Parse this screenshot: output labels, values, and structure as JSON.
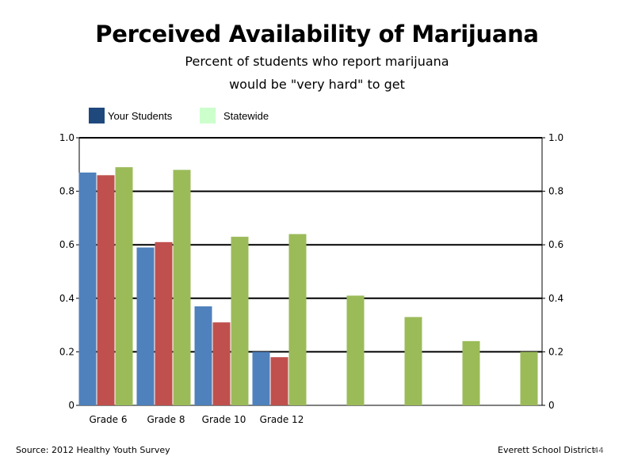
{
  "chart_data": {
    "type": "bar",
    "title": "Perceived Availability of Marijuana",
    "subtitle_lines": [
      "Percent of students who report marijuana",
      "would be \"very hard\" to get"
    ],
    "categories": [
      "Grade 6",
      "Grade 8",
      "Grade 10",
      "Grade 12",
      "",
      "",
      "",
      ""
    ],
    "series": [
      {
        "name": "Your Students",
        "color": "#4f81bd",
        "values": [
          0.87,
          0.59,
          0.37,
          0.2,
          null,
          null,
          null,
          null
        ]
      },
      {
        "name": "",
        "color": "#c0504d",
        "values": [
          0.86,
          0.61,
          0.31,
          0.18,
          null,
          null,
          null,
          null
        ]
      },
      {
        "name": "Statewide",
        "color": "#9bbb59",
        "values": [
          0.89,
          0.88,
          0.63,
          0.64,
          0.41,
          0.33,
          0.24,
          0.2
        ]
      }
    ],
    "legend": [
      {
        "label": "Your Students",
        "color": "#1f497d"
      },
      {
        "label": "Statewide",
        "color": "#ccffcc"
      }
    ],
    "ylim": [
      0,
      1.0
    ],
    "yticks": [
      0,
      0.2,
      0.4,
      0.6,
      0.8,
      1.0
    ],
    "ytick_labels_left": [
      "0",
      "0.2",
      "0.4",
      "0.6",
      "0.8",
      "1.0"
    ],
    "ytick_labels_right": [
      "0",
      "0.2",
      "0.4",
      "0.6",
      "0.8",
      "1.0"
    ],
    "grid": true,
    "legend_placement": "top-left"
  },
  "footer": {
    "source": "Source: 2012 Healthy Youth Survey",
    "district": "Everett School District",
    "page_number": "44"
  }
}
